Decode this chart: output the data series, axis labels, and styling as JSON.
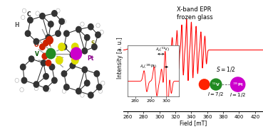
{
  "title": "X-band EPR\nfrozen glass",
  "xlabel": "Field [mT]",
  "ylabel": "Intensity [a. u.]",
  "xlim": [
    255,
    430
  ],
  "epr_color": "#ff0000",
  "v_color": "#228B22",
  "pt_color": "#CC00CC",
  "o_color": "#ff2200",
  "bg_color": "#f2f2f2",
  "v_par_centers": [
    317,
    323,
    329,
    335,
    341,
    347,
    353,
    358
  ],
  "v_par_widths": [
    1.0,
    1.0,
    1.0,
    1.0,
    1.0,
    1.0,
    1.0,
    1.0
  ],
  "v_par_heights": [
    0.5,
    0.7,
    0.9,
    1.1,
    1.0,
    0.85,
    0.65,
    0.5
  ],
  "v_perp_centers": [
    265,
    272,
    279,
    286,
    293,
    300,
    307,
    313
  ],
  "v_perp_widths": [
    3.0,
    3.0,
    3.0,
    3.0,
    3.0,
    3.0,
    3.0,
    3.0
  ],
  "v_perp_heights": [
    0.15,
    0.2,
    0.25,
    0.3,
    0.3,
    0.25,
    0.2,
    0.15
  ]
}
